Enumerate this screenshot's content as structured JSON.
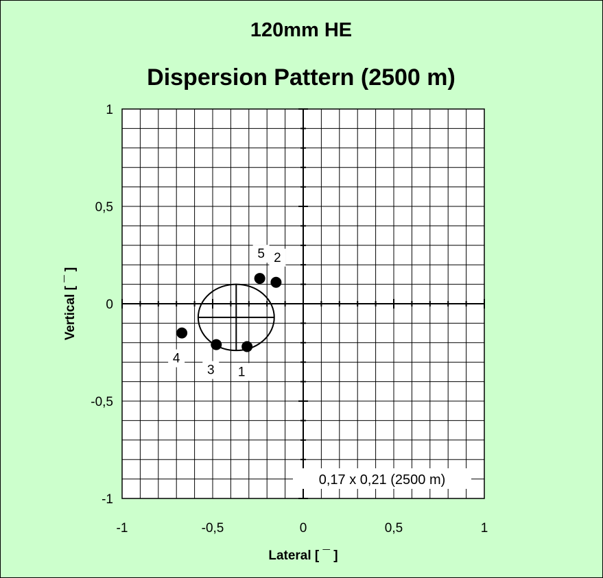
{
  "chart_data": {
    "type": "scatter",
    "title": "120mm HE",
    "subtitle": "Dispersion Pattern (2500 m)",
    "xlabel": "Lateral [ ¯ ]",
    "ylabel": "Vertical [ ¯ ]",
    "xlim": [
      -1,
      1
    ],
    "ylim": [
      -1,
      1
    ],
    "x_ticks": [
      {
        "value": -1,
        "label": "-1"
      },
      {
        "value": -0.5,
        "label": "-0,5"
      },
      {
        "value": 0,
        "label": "0"
      },
      {
        "value": 0.5,
        "label": "0,5"
      },
      {
        "value": 1,
        "label": "1"
      }
    ],
    "y_ticks": [
      {
        "value": 1,
        "label": "1"
      },
      {
        "value": 0.5,
        "label": "0,5"
      },
      {
        "value": 0,
        "label": "0"
      },
      {
        "value": -0.5,
        "label": "-0,5"
      },
      {
        "value": -1,
        "label": "-1"
      }
    ],
    "grid": true,
    "grid_step": 0.1,
    "points": [
      {
        "label": "1",
        "x": -0.31,
        "y": -0.22
      },
      {
        "label": "2",
        "x": -0.15,
        "y": 0.11
      },
      {
        "label": "3",
        "x": -0.48,
        "y": -0.21
      },
      {
        "label": "4",
        "x": -0.67,
        "y": -0.15
      },
      {
        "label": "5",
        "x": -0.24,
        "y": 0.13
      }
    ],
    "mean_point": {
      "x": -0.37,
      "y": -0.07
    },
    "ellipse": {
      "cx": -0.37,
      "cy": -0.07,
      "rx": 0.21,
      "ry": 0.17
    },
    "annotation": "0,17 x 0,21 (2500 m)",
    "colors": {
      "background": "#ccffcc",
      "plot_area": "#ffffff",
      "marker": "#000000",
      "grid": "#000000"
    }
  }
}
